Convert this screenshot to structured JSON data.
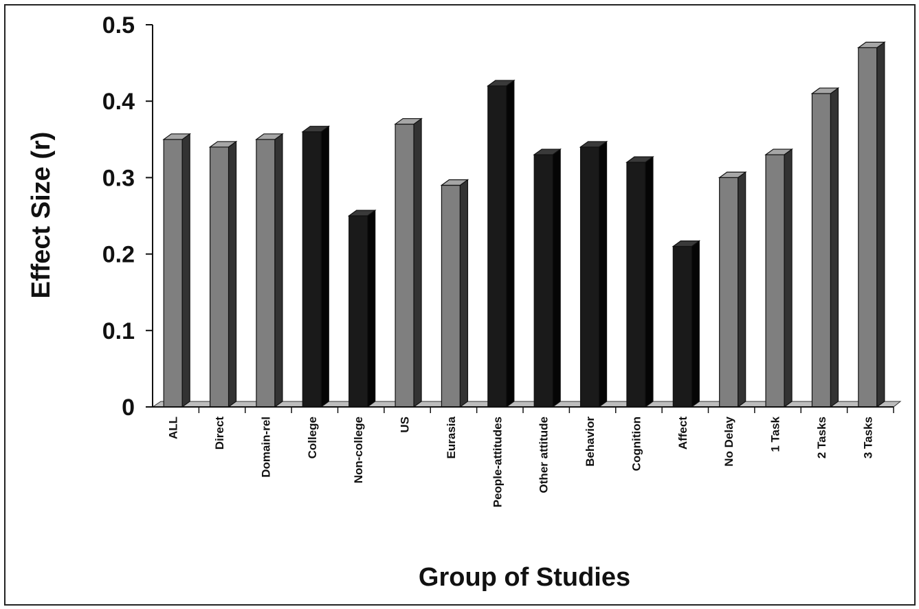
{
  "chart_data": {
    "type": "bar",
    "title": "",
    "xlabel": "Group of Studies",
    "ylabel": "Effect Size (r)",
    "ylim": [
      0,
      0.5
    ],
    "yticks": [
      "0",
      "0.1",
      "0.2",
      "0.3",
      "0.4",
      "0.5"
    ],
    "grid": false,
    "legend": "none",
    "colors": {
      "gray": "#7f7f7f",
      "black": "#1a1a1a"
    },
    "categories": [
      "ALL",
      "Direct",
      "Domain-rel",
      "College",
      "Non-college",
      "US",
      "Eurasia",
      "People-attitudes",
      "Other attitude",
      "Behavior",
      "Cognition",
      "Affect",
      "No Delay",
      "1 Task",
      "2 Tasks",
      "3 Tasks"
    ],
    "values": [
      0.35,
      0.34,
      0.35,
      0.36,
      0.25,
      0.37,
      0.29,
      0.42,
      0.33,
      0.34,
      0.32,
      0.21,
      0.3,
      0.33,
      0.41,
      0.47
    ],
    "bar_colors": [
      "gray",
      "gray",
      "gray",
      "black",
      "black",
      "gray",
      "gray",
      "black",
      "black",
      "black",
      "black",
      "black",
      "gray",
      "gray",
      "gray",
      "gray"
    ]
  }
}
